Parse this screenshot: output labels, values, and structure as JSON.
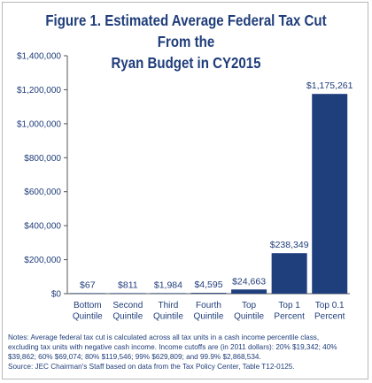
{
  "figure": {
    "title_line1": "Figure 1. Estimated Average Federal Tax Cut From the",
    "title_line2": "Ryan Budget in CY2015"
  },
  "notes": {
    "line1": "Notes: Average federal tax cut is calculated across all tax units in a cash income percentile class,",
    "line2": "excluding tax units with negative cash income. Income cutoffs are (in 2011 dollars): 20% $19,342; 40%",
    "line3": "$39,862; 60% $69,074; 80% $119,546; 99% $629,809; and 99.9% $2,868,534.",
    "line4": "Source: JEC Chairman's Staff based on data from the Tax Policy Center, Table T12-0125."
  },
  "colors": {
    "bar": "#1e3f7c",
    "text": "#1f3d7a",
    "axis": "#555555"
  },
  "chart_data": {
    "type": "bar",
    "title": "Figure 1. Estimated Average Federal Tax Cut From the Ryan Budget in CY2015",
    "categories": [
      [
        "Bottom",
        "Quintile"
      ],
      [
        "Second",
        "Quintile"
      ],
      [
        "Third",
        "Quintile"
      ],
      [
        "Fourth",
        "Quintile"
      ],
      [
        "Top",
        "Quintile"
      ],
      [
        "Top 1",
        "Percent"
      ],
      [
        "Top 0.1",
        "Percent"
      ]
    ],
    "values": [
      67,
      811,
      1984,
      4595,
      24663,
      238349,
      1175261
    ],
    "data_labels": [
      "$67",
      "$811",
      "$1,984",
      "$4,595",
      "$24,663",
      "$238,349",
      "$1,175,261"
    ],
    "ylim": [
      0,
      1400000
    ],
    "yticks": [
      0,
      200000,
      400000,
      600000,
      800000,
      1000000,
      1200000,
      1400000
    ],
    "ytick_labels": [
      "$0",
      "$200,000",
      "$400,000",
      "$600,000",
      "$800,000",
      "$1,000,000",
      "$1,200,000",
      "$1,400,000"
    ],
    "xlabel": "",
    "ylabel": "",
    "grid": false,
    "legend": "none"
  }
}
